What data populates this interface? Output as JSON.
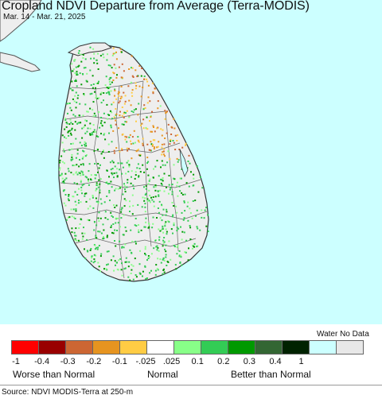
{
  "title": "Cropland NDVI Departure from Average (Terra-MODIS)",
  "subtitle": "Mar. 14 - Mar. 21, 2025",
  "colors": {
    "water": "#ccffff",
    "land": "#eeeeee",
    "boundary": "#555555"
  },
  "legend": {
    "water_label": "Water No Data",
    "swatches": [
      "#ff0000",
      "#990000",
      "#cc6633",
      "#e69420",
      "#ffcc44",
      "#ffffff",
      "#88ff88",
      "#33cc55",
      "#009900",
      "#336633",
      "#002200",
      "#ccffff",
      "#e8e8e8"
    ],
    "ticks": [
      "-1",
      "-0.4",
      "-0.3",
      "-0.2",
      "-0.1",
      "-.025",
      ".025",
      "0.1",
      "0.2",
      "0.3",
      "0.4",
      "1"
    ],
    "categories": [
      "Worse than Normal",
      "Normal",
      "Better than Normal"
    ]
  },
  "source": "Source: NDVI MODIS-Terra at 250-m"
}
